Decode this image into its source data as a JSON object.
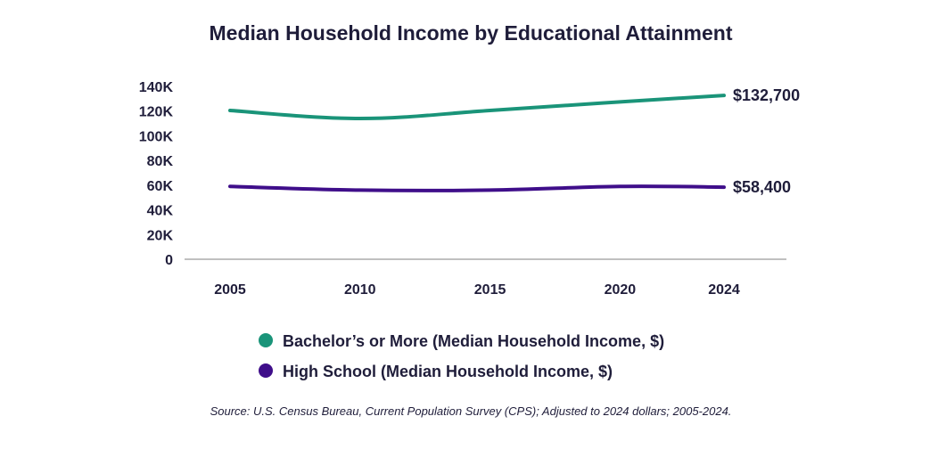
{
  "chart_data": {
    "type": "line",
    "title": "Median Household Income by Educational Attainment",
    "x": [
      2005,
      2010,
      2015,
      2020,
      2024
    ],
    "x_tick_labels": [
      "2005",
      "2010",
      "2015",
      "2020",
      "2024"
    ],
    "y_ticks": [
      0,
      20000,
      40000,
      60000,
      80000,
      100000,
      120000,
      140000
    ],
    "y_tick_labels": [
      "0",
      "20K",
      "40K",
      "60K",
      "80K",
      "100K",
      "120K",
      "140K"
    ],
    "ylim": [
      0,
      140000
    ],
    "xlabel": "",
    "ylabel": "",
    "grid": false,
    "legend_position": "bottom",
    "series": [
      {
        "name": "Bachelor’s or More (Median Household Income, $)",
        "color": "#1a9479",
        "values": [
          120500,
          114000,
          120500,
          127500,
          132700
        ],
        "end_label": "$132,700"
      },
      {
        "name": "High School (Median Household Income, $)",
        "color": "#3f0e8a",
        "values": [
          59000,
          56000,
          56000,
          59000,
          58400
        ],
        "end_label": "$58,400"
      }
    ],
    "source": "Source: U.S. Census Bureau, Current Population Survey (CPS); Adjusted to 2024 dollars; 2005-2024."
  }
}
